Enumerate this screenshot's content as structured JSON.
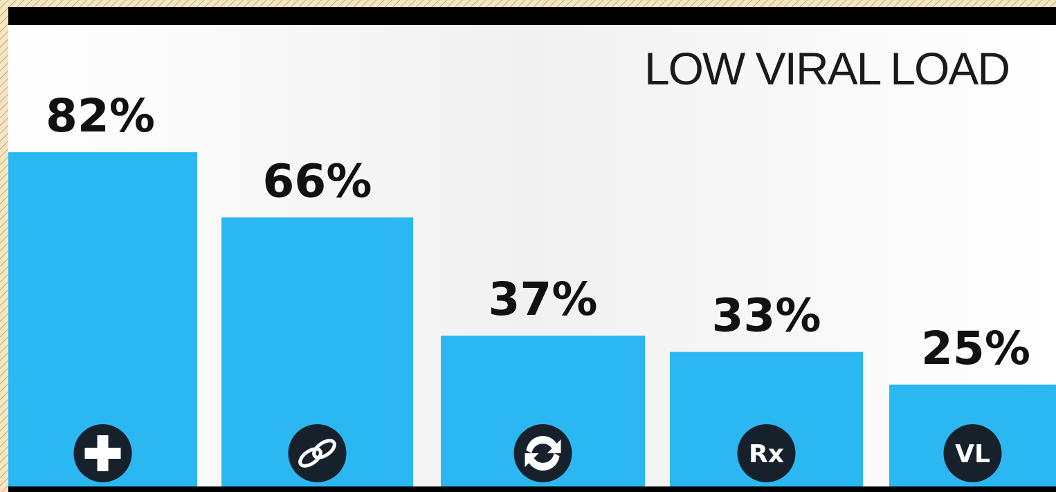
{
  "chart_data": {
    "type": "bar",
    "title": "LOW VIRAL LOAD",
    "categories": [
      null,
      null,
      null,
      "Rx",
      "VL"
    ],
    "values": [
      82,
      66,
      37,
      33,
      25
    ],
    "value_labels": [
      "82%",
      "66%",
      "37%",
      "33%",
      "25%"
    ],
    "color": "#2bb8f2"
  }
}
